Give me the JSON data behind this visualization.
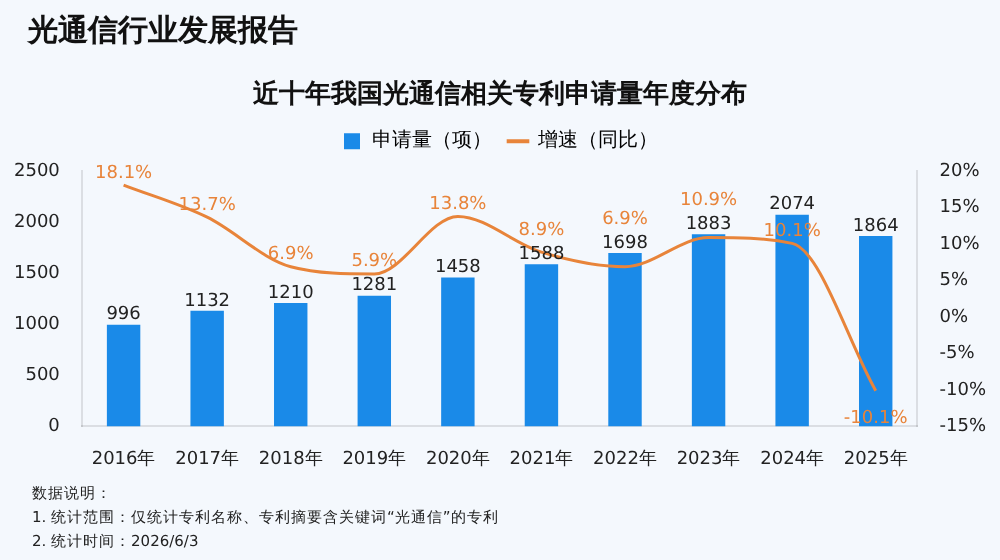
{
  "chart_data": {
    "type": "bar",
    "title": "光通信行业发展报告",
    "subtitle": "近十年我国光通信相关专利申请量年度分布",
    "categories": [
      "2016年",
      "2017年",
      "2018年",
      "2019年",
      "2020年",
      "2021年",
      "2022年",
      "2023年",
      "2024年",
      "2025年"
    ],
    "series": [
      {
        "name": "申请量（项）",
        "color": "#1a8ae8",
        "values": [
          996,
          1132,
          1210,
          1281,
          1458,
          1588,
          1698,
          1883,
          2074,
          1864
        ],
        "value_labels": [
          "996",
          "1132",
          "1210",
          "1281",
          "1458",
          "1588",
          "1698",
          "1883",
          "2074",
          "1864"
        ]
      },
      {
        "name": "增速（同比）",
        "type": "line",
        "axis": "y2",
        "color": "#e8843a",
        "marker": "none",
        "values": [
          18.1,
          13.7,
          6.9,
          5.9,
          13.8,
          8.9,
          6.9,
          10.9,
          10.1,
          -10.1
        ],
        "value_labels": [
          "18.1%",
          "13.7%",
          "6.9%",
          "5.9%",
          "13.8%",
          "8.9%",
          "6.9%",
          "10.9%",
          "10.1%",
          "-10.1%"
        ]
      }
    ],
    "ylim": [
      0,
      2500
    ],
    "yticks": [
      0,
      500,
      1000,
      1500,
      2000,
      2500
    ],
    "y2lim": [
      -15,
      20
    ],
    "y2ticks": [
      {
        "value": -15,
        "label": "-15%"
      },
      {
        "value": -10,
        "label": "-10%"
      },
      {
        "value": -5,
        "label": "-5%"
      },
      {
        "value": 0,
        "label": "0%"
      },
      {
        "value": 5,
        "label": "5%"
      },
      {
        "value": 10,
        "label": "10%"
      },
      {
        "value": 15,
        "label": "15%"
      },
      {
        "value": 20,
        "label": "20%"
      }
    ],
    "grid": false,
    "legend": "top",
    "annotations": [
      "数据说明：",
      "1. 统计范围：仅统计专利名称、专利摘要含关键词“光通信”的专利",
      "2. 统计时间：2026/6/3"
    ]
  }
}
